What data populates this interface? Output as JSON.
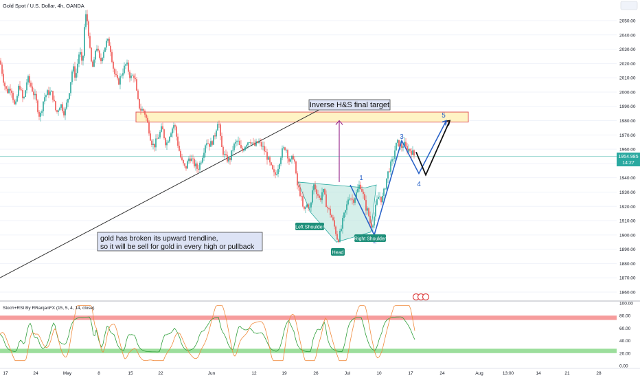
{
  "header": {
    "symbol": "Gold Spot / U.S. Dollar, 4h, OANDA"
  },
  "colors": {
    "bull": "#26a69a",
    "bear": "#ef5350",
    "price_line": "#2aa9a0",
    "zone_fill": "#fff3c4",
    "zone_stroke": "#e05a5a",
    "pattern_fill": "#b9e4dc",
    "wave": "#2a63c8",
    "stoch_k": "#2e9e3a",
    "stoch_d": "#f08a3c",
    "band_high": "#f58b8b",
    "band_low": "#8bd88b",
    "arrow": "#9b2f8f"
  },
  "annotations": {
    "target_label": "Inverse H&S final target",
    "note_line1": "gold has broken its upward trendline,",
    "note_line2": "so it will be sell for gold in every high or pullback",
    "left_shoulder": "Left Shoulder",
    "head": "Head",
    "right_shoulder": "Right Shoulder",
    "waves": [
      "1",
      "2",
      "3",
      "4",
      "5"
    ]
  },
  "price_tag": {
    "price": "1954.985",
    "countdown": "14:27"
  },
  "indicator": {
    "label": "Stoch+RSI By RRanjanFX (15, 5, 4, 14, close)",
    "axis_labels": [
      "100.00",
      "80.00",
      "60.00",
      "40.00",
      "20.00",
      "0.00"
    ]
  },
  "time_axis": {
    "labels": [
      "17",
      "24",
      "May",
      "8",
      "15",
      "22",
      "Jun",
      "12",
      "19",
      "26",
      "Jul",
      "10",
      "17",
      "24",
      "Aug",
      "13:00",
      "14",
      "21",
      "28"
    ]
  },
  "chart_data": {
    "type": "candlestick",
    "title": "Gold Spot / U.S. Dollar, 4h, OANDA",
    "price_axis": {
      "ticks": [
        1860,
        1870,
        1880,
        1890,
        1900,
        1910,
        1920,
        1930,
        1940,
        1950,
        1960,
        1970,
        1980,
        1990,
        2000,
        2010,
        2020,
        2030,
        2040,
        2050
      ],
      "range": [
        1855,
        2063
      ]
    },
    "last_price": 1954.985,
    "resistance_zone": [
      1979,
      1986
    ],
    "price_path": [
      [
        0,
        2022
      ],
      [
        6,
        2006
      ],
      [
        10,
        2000
      ],
      [
        16,
        2004
      ],
      [
        22,
        1988
      ],
      [
        28,
        2006
      ],
      [
        34,
        1993
      ],
      [
        40,
        2010
      ],
      [
        46,
        2003
      ],
      [
        52,
        1995
      ],
      [
        58,
        1982
      ],
      [
        64,
        1996
      ],
      [
        70,
        2000
      ],
      [
        76,
        1999
      ],
      [
        82,
        1985
      ],
      [
        88,
        1992
      ],
      [
        94,
        1985
      ],
      [
        100,
        1998
      ],
      [
        106,
        2018
      ],
      [
        110,
        2010
      ],
      [
        116,
        2030
      ],
      [
        120,
        2016
      ],
      [
        124,
        2055
      ],
      [
        128,
        2048
      ],
      [
        132,
        2022
      ],
      [
        136,
        2016
      ],
      [
        140,
        2034
      ],
      [
        146,
        2020
      ],
      [
        150,
        2028
      ],
      [
        156,
        2036
      ],
      [
        160,
        2033
      ],
      [
        166,
        2014
      ],
      [
        172,
        2006
      ],
      [
        178,
        2014
      ],
      [
        184,
        2020
      ],
      [
        190,
        2010
      ],
      [
        196,
        2012
      ],
      [
        200,
        1995
      ],
      [
        204,
        1988
      ],
      [
        210,
        1987
      ],
      [
        216,
        1976
      ],
      [
        220,
        1966
      ],
      [
        224,
        1962
      ],
      [
        230,
        1968
      ],
      [
        236,
        1975
      ],
      [
        242,
        1963
      ],
      [
        248,
        1972
      ],
      [
        254,
        1978
      ],
      [
        258,
        1966
      ],
      [
        264,
        1952
      ],
      [
        270,
        1946
      ],
      [
        276,
        1955
      ],
      [
        282,
        1950
      ],
      [
        288,
        1946
      ],
      [
        294,
        1954
      ],
      [
        300,
        1966
      ],
      [
        306,
        1963
      ],
      [
        312,
        1968
      ],
      [
        318,
        1982
      ],
      [
        322,
        1962
      ],
      [
        328,
        1954
      ],
      [
        334,
        1952
      ],
      [
        340,
        1962
      ],
      [
        346,
        1966
      ],
      [
        352,
        1958
      ],
      [
        358,
        1964
      ],
      [
        364,
        1967
      ],
      [
        370,
        1962
      ],
      [
        376,
        1965
      ],
      [
        382,
        1962
      ],
      [
        388,
        1956
      ],
      [
        394,
        1948
      ],
      [
        400,
        1941
      ],
      [
        404,
        1946
      ],
      [
        410,
        1958
      ],
      [
        416,
        1962
      ],
      [
        422,
        1950
      ],
      [
        428,
        1956
      ],
      [
        432,
        1936
      ],
      [
        438,
        1928
      ],
      [
        442,
        1916
      ],
      [
        448,
        1922
      ],
      [
        452,
        1917
      ],
      [
        456,
        1936
      ],
      [
        460,
        1932
      ],
      [
        466,
        1924
      ],
      [
        470,
        1932
      ],
      [
        476,
        1920
      ],
      [
        482,
        1914
      ],
      [
        488,
        1904
      ],
      [
        492,
        1896
      ],
      [
        496,
        1902
      ],
      [
        500,
        1912
      ],
      [
        504,
        1918
      ],
      [
        508,
        1928
      ],
      [
        514,
        1924
      ],
      [
        520,
        1930
      ],
      [
        524,
        1936
      ],
      [
        528,
        1930
      ],
      [
        532,
        1920
      ],
      [
        536,
        1916
      ],
      [
        540,
        1906
      ],
      [
        544,
        1910
      ],
      [
        548,
        1922
      ],
      [
        552,
        1928
      ],
      [
        556,
        1924
      ],
      [
        560,
        1932
      ],
      [
        564,
        1942
      ],
      [
        568,
        1948
      ],
      [
        572,
        1952
      ],
      [
        576,
        1962
      ],
      [
        580,
        1965
      ],
      [
        584,
        1961
      ],
      [
        588,
        1964
      ],
      [
        592,
        1960
      ],
      [
        596,
        1960
      ],
      [
        600,
        1958
      ],
      [
        604,
        1955
      ]
    ],
    "wave_path": [
      [
        510,
        1935
      ],
      [
        545,
        1900
      ],
      [
        585,
        1966
      ],
      [
        610,
        1943
      ],
      [
        650,
        1980
      ]
    ],
    "projection_path": [
      [
        606,
        1958
      ],
      [
        620,
        1942
      ],
      [
        655,
        1980
      ]
    ],
    "trendline": [
      [
        0,
        1870
      ],
      [
        490,
        1994
      ]
    ],
    "target_arrow": [
      [
        494,
        1937
      ],
      [
        494,
        1980
      ]
    ],
    "pattern_polygon": [
      [
        434,
        1937
      ],
      [
        532,
        1933
      ],
      [
        548,
        1935
      ],
      [
        540,
        1902
      ],
      [
        490,
        1895
      ],
      [
        452,
        1916
      ]
    ],
    "indicator_data": {
      "ticks": [
        100,
        80,
        60,
        40,
        20,
        0
      ],
      "overbought_band": [
        73,
        80
      ],
      "oversold_band": [
        20,
        27
      ]
    }
  }
}
